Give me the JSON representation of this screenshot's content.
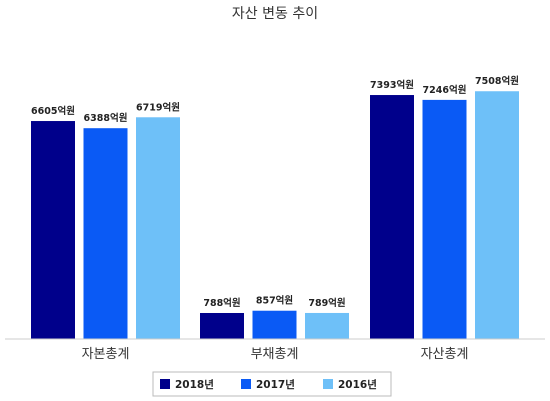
{
  "chart_data": {
    "type": "bar",
    "title": "자산 변동 추이",
    "xlabel": "",
    "ylabel": "",
    "ylim": [
      0,
      8000
    ],
    "grid": false,
    "legend_position": "bottom",
    "unit_suffix": "억원",
    "categories": [
      "자본총계",
      "부채총계",
      "자산총계"
    ],
    "series": [
      {
        "name": "2018년",
        "color": "#00008B",
        "values": [
          6605,
          788,
          7393
        ]
      },
      {
        "name": "2017년",
        "color": "#0A5AF5",
        "values": [
          6388,
          857,
          7246
        ]
      },
      {
        "name": "2016년",
        "color": "#6EC0F8",
        "values": [
          6719,
          789,
          7508
        ]
      }
    ]
  }
}
